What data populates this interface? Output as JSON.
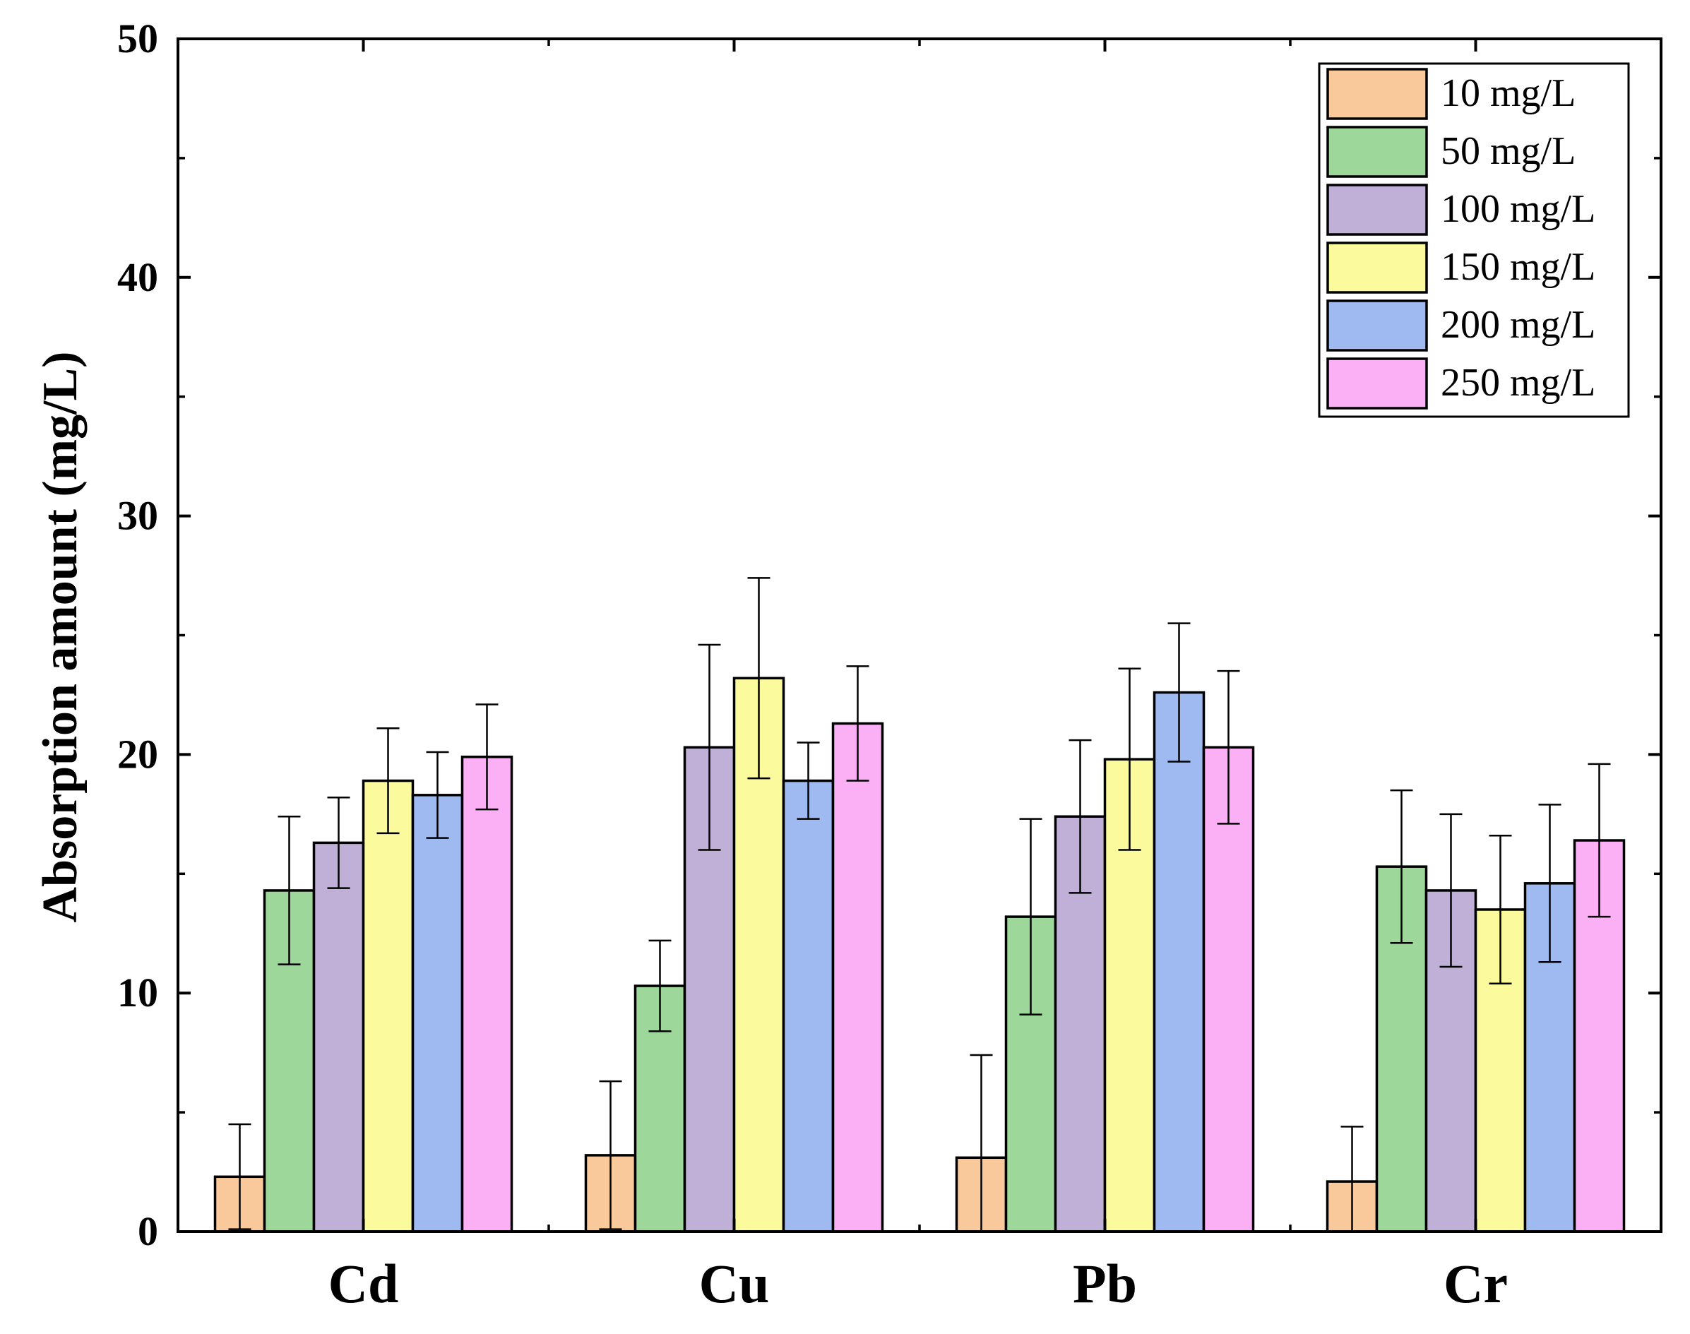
{
  "chart_data": {
    "type": "bar",
    "title": "",
    "xlabel": "",
    "ylabel": "Absorption amount (mg/L)",
    "ylim": [
      0,
      50
    ],
    "yticks": [
      0,
      10,
      20,
      30,
      40,
      50
    ],
    "grid": false,
    "legend_position": "top-right",
    "categories": [
      "Cd",
      "Cu",
      "Pb",
      "Cr"
    ],
    "series": [
      {
        "name": "10 mg/L",
        "color": "#F9C99B",
        "values": [
          2.3,
          3.2,
          3.1,
          2.1
        ],
        "errors": [
          2.2,
          3.1,
          4.3,
          2.3
        ]
      },
      {
        "name": "50 mg/L",
        "color": "#9DD79A",
        "values": [
          14.3,
          10.3,
          13.2,
          15.3
        ],
        "errors": [
          3.1,
          1.9,
          4.1,
          3.2
        ]
      },
      {
        "name": "100 mg/L",
        "color": "#C0B0D7",
        "values": [
          16.3,
          20.3,
          17.4,
          14.3
        ],
        "errors": [
          1.9,
          4.3,
          3.2,
          3.2
        ]
      },
      {
        "name": "150 mg/L",
        "color": "#FBFB9D",
        "values": [
          18.9,
          23.2,
          19.8,
          13.5
        ],
        "errors": [
          2.2,
          4.2,
          3.8,
          3.1
        ]
      },
      {
        "name": "200 mg/L",
        "color": "#9EBAF0",
        "values": [
          18.3,
          18.9,
          22.6,
          14.6
        ],
        "errors": [
          1.8,
          1.6,
          2.9,
          3.3
        ]
      },
      {
        "name": "250 mg/L",
        "color": "#FBB0F6",
        "values": [
          19.9,
          21.3,
          20.3,
          16.4
        ],
        "errors": [
          2.2,
          2.4,
          3.2,
          3.2
        ]
      }
    ]
  }
}
